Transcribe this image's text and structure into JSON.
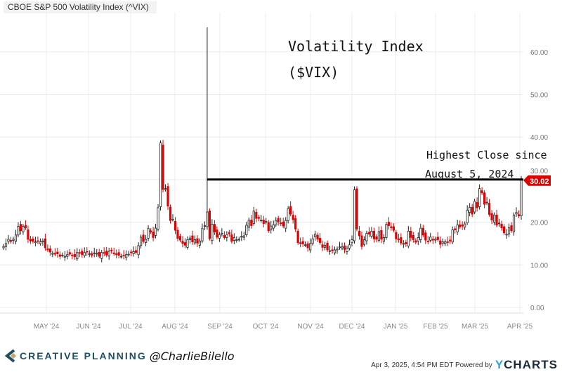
{
  "title": "CBOE S&P 500 Volatility Index (^VIX)",
  "annotations": {
    "line1": "Volatility Index",
    "line2": "($VIX)",
    "note1": "Highest Close since",
    "note2": "August 5, 2024"
  },
  "footer": {
    "brand": "CREATIVE PLANNING",
    "handle": "@CharlieBilello",
    "timestamp": "Apr 3, 2025, 4:54 PM EDT Powered by",
    "ycharts_y": "Y",
    "ycharts_rest": "CHARTS"
  },
  "colors": {
    "up": "#222222",
    "down": "#e00000",
    "grid": "#ececec",
    "badge": "#e00000"
  },
  "chart_data": {
    "type": "candlestick",
    "title": "CBOE S&P 500 Volatility Index (^VIX)",
    "start": "2024-04-03",
    "end": "2025-04-03",
    "ylim": [
      0,
      65
    ],
    "yticks": [
      "0.00",
      "10.00",
      "20.00",
      "30.00",
      "40.00",
      "50.00",
      "60.00"
    ],
    "xticks": [
      "MAY '24",
      "JUN '24",
      "JUL '24",
      "AUG '24",
      "SEP '24",
      "OCT '24",
      "NOV '24",
      "DEC '24",
      "JAN '25",
      "FEB '25",
      "MAR '25",
      "APR '25"
    ],
    "last_value": "30.02",
    "reference_line": 30.02,
    "high_overrides": [
      {
        "index": 83,
        "high": 65.73
      }
    ],
    "closes": [
      14.3,
      15,
      16,
      15.5,
      16,
      17,
      19,
      18,
      19,
      18.7,
      16,
      15.6,
      15.5,
      15.4,
      15.5,
      15.4,
      15.6,
      14,
      13.5,
      13,
      12.7,
      12.5,
      12.6,
      12,
      12.3,
      12,
      12.4,
      12.5,
      12.2,
      11.9,
      12.9,
      12.7,
      12.4,
      12.9,
      13,
      12.6,
      12.2,
      12.8,
      12.7,
      12,
      12.9,
      12.7,
      12.3,
      13.2,
      13.3,
      12.6,
      12.4,
      12.2,
      12.0,
      12.2,
      12.4,
      12.5,
      12.9,
      13.1,
      12.9,
      14.5,
      16.5,
      15.5,
      16,
      18.5,
      17.7,
      16.4,
      18.6,
      23.4,
      38.6,
      27.7,
      27.9,
      23.8,
      20.4,
      20.7,
      18.1,
      16.2,
      15.8,
      15,
      14.6,
      15.9,
      16.3,
      15.4,
      15.9,
      15.1,
      15.6,
      18.5,
      19.2,
      22.4,
      16.2,
      19.5,
      17.7,
      16.5,
      17.1,
      17.4,
      16.4,
      17.1,
      17.3,
      15.5,
      16.4,
      15.9,
      16.0,
      16.7,
      16.8,
      19.3,
      20.5,
      19.2,
      22.6,
      20.9,
      20.9,
      20.5,
      19.7,
      20.2,
      18.0,
      19.1,
      19.4,
      20.4,
      20.1,
      19.8,
      19.1,
      20.4,
      23.2,
      21.9,
      20.6,
      18.4,
      15.2,
      15.0,
      14.9,
      14.7,
      14.0,
      15.0,
      16.1,
      17.2,
      16.0,
      15.2,
      14.1,
      14.6,
      13.5,
      13.3,
      13.3,
      13.5,
      13.7,
      14.2,
      14.2,
      13.6,
      13.9,
      14.7,
      15.9,
      27.6,
      18.4,
      16.8,
      14.3,
      15.9,
      17.4,
      17.2,
      17.9,
      16.1,
      16.0,
      17.8,
      16.0,
      16.4,
      19.5,
      19.2,
      18.7,
      18.1,
      16.1,
      15.9,
      15.1,
      15.0,
      14.9,
      17.9,
      16.4,
      15.9,
      15.3,
      16.4,
      18.6,
      17.0,
      15.8,
      15.5,
      16.5,
      15.8,
      16.0,
      15.9,
      14.8,
      15.4,
      15.4,
      15.3,
      15.6,
      18.2,
      18.2,
      19.4,
      18.9,
      19.1,
      19.6,
      22.8,
      23.5,
      21.9,
      24.9,
      23.4,
      27.9,
      26.9,
      24.2,
      24.7,
      21.8,
      20.5,
      21.7,
      19.3,
      19.8,
      18.7,
      17.5,
      17.2,
      18.7,
      18.0,
      21.7,
      22.3,
      21.5,
      30.02
    ]
  }
}
